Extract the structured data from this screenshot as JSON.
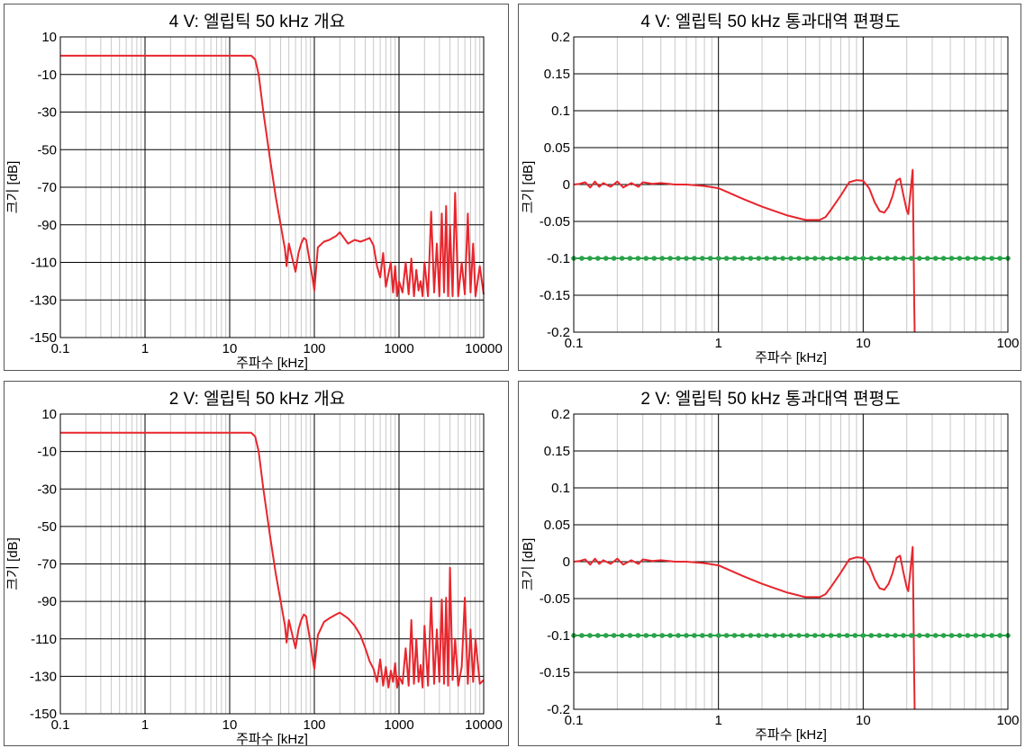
{
  "chart_data": [
    {
      "type": "line",
      "title": "4 V: 엘립틱 50 kHz 개요",
      "xlabel": "주파수 [kHz]",
      "ylabel": "크기 [dB]",
      "xscale": "log",
      "xlim": [
        0.1,
        10000
      ],
      "ylim": [
        -150,
        10
      ],
      "xticks": [
        0.1,
        1,
        10,
        100,
        1000,
        10000
      ],
      "xtick_labels": [
        "0.1",
        "1",
        "10",
        "100",
        "1000",
        "10000"
      ],
      "yticks": [
        10,
        -10,
        -30,
        -50,
        -70,
        -90,
        -110,
        -130,
        -150
      ],
      "ytick_labels": [
        "10",
        "-10",
        "-30",
        "-50",
        "-70",
        "-90",
        "-110",
        "-130",
        "-150"
      ],
      "grid": true,
      "series": [
        {
          "color": "#e8262d",
          "x": [
            0.1,
            1,
            10,
            18,
            20,
            22,
            25,
            30,
            35,
            40,
            45,
            47,
            50,
            55,
            60,
            65,
            70,
            75,
            80,
            90,
            95,
            100,
            110,
            130,
            150,
            180,
            200,
            250,
            300,
            350,
            400,
            450,
            500,
            550,
            600,
            650,
            700,
            800,
            850,
            900,
            950,
            1000,
            1100,
            1200,
            1300,
            1400,
            1500,
            1600,
            1700,
            1800,
            1900,
            2000,
            2200,
            2400,
            2600,
            2800,
            3000,
            3200,
            3400,
            3600,
            3800,
            4000,
            4300,
            4600,
            5000,
            5500,
            6000,
            6500,
            7000,
            7500,
            8000,
            9000,
            10000
          ],
          "y": [
            0,
            0,
            0,
            0,
            -2,
            -10,
            -30,
            -55,
            -75,
            -90,
            -103,
            -112,
            -100,
            -108,
            -115,
            -105,
            -100,
            -97,
            -98,
            -112,
            -118,
            -125,
            -102,
            -99,
            -98,
            -96,
            -94,
            -100,
            -98,
            -99,
            -98,
            -97,
            -101,
            -112,
            -118,
            -105,
            -123,
            -110,
            -126,
            -112,
            -128,
            -120,
            -126,
            -110,
            -127,
            -108,
            -128,
            -114,
            -125,
            -120,
            -128,
            -110,
            -128,
            -83,
            -126,
            -100,
            -128,
            -84,
            -126,
            -80,
            -128,
            -90,
            -128,
            -73,
            -128,
            -110,
            -127,
            -84,
            -126,
            -100,
            -128,
            -112,
            -127
          ]
        }
      ]
    },
    {
      "type": "line",
      "title": "4 V: 엘립틱 50 kHz 통과대역 편평도",
      "xlabel": "주파수 [kHz]",
      "ylabel": "크기 [dB]",
      "xscale": "log",
      "xlim": [
        0.1,
        100
      ],
      "ylim": [
        -0.2,
        0.2
      ],
      "xticks": [
        0.1,
        1,
        10,
        100
      ],
      "xtick_labels": [
        "0.1",
        "1",
        "10",
        "100"
      ],
      "yticks": [
        0.2,
        0.15,
        0.1,
        0.05,
        0,
        -0.05,
        -0.1,
        -0.15,
        -0.2
      ],
      "ytick_labels": [
        "0.2",
        "0.15",
        "0.1",
        "0.05",
        "0",
        "-0.05",
        "-0.1",
        "-0.15",
        "-0.2"
      ],
      "grid": true,
      "series": [
        {
          "color": "#e8262d",
          "x": [
            0.1,
            0.11,
            0.12,
            0.13,
            0.14,
            0.15,
            0.16,
            0.18,
            0.2,
            0.22,
            0.25,
            0.28,
            0.3,
            0.35,
            0.4,
            0.5,
            0.6,
            0.8,
            1,
            1.5,
            2,
            3,
            4,
            5,
            5.5,
            6,
            7,
            8,
            9,
            10,
            11,
            12,
            13,
            14,
            15,
            16,
            17,
            18,
            19,
            20,
            20.5,
            21,
            22,
            22.3,
            22.5,
            22.7
          ],
          "y": [
            0,
            0.001,
            0.003,
            -0.004,
            0.004,
            -0.003,
            0.002,
            -0.003,
            0.004,
            -0.004,
            0.002,
            -0.003,
            0.003,
            0.001,
            0.002,
            0,
            0,
            -0.002,
            -0.005,
            -0.02,
            -0.03,
            -0.042,
            -0.048,
            -0.048,
            -0.044,
            -0.034,
            -0.015,
            0.003,
            0.006,
            0.005,
            -0.005,
            -0.024,
            -0.036,
            -0.038,
            -0.03,
            -0.015,
            0.005,
            0.008,
            -0.015,
            -0.035,
            -0.04,
            -0.02,
            0.02,
            -0.08,
            -0.15,
            -0.2
          ]
        },
        {
          "color": "#2aa34a",
          "x": [
            0.1,
            100
          ],
          "y": [
            -0.1,
            -0.1
          ],
          "style": "dotted"
        }
      ]
    },
    {
      "type": "line",
      "title": "2 V: 엘립틱 50 kHz 개요",
      "xlabel": "주파수 [kHz]",
      "ylabel": "크기 [dB]",
      "xscale": "log",
      "xlim": [
        0.1,
        10000
      ],
      "ylim": [
        -150,
        10
      ],
      "xticks": [
        0.1,
        1,
        10,
        100,
        1000,
        10000
      ],
      "xtick_labels": [
        "0.1",
        "1",
        "10",
        "100",
        "1000",
        "10000"
      ],
      "yticks": [
        10,
        -10,
        -30,
        -50,
        -70,
        -90,
        -110,
        -130,
        -150
      ],
      "ytick_labels": [
        "10",
        "-10",
        "-30",
        "-50",
        "-70",
        "-90",
        "-110",
        "-130",
        "-150"
      ],
      "grid": true,
      "series": [
        {
          "color": "#e8262d",
          "x": [
            0.1,
            1,
            10,
            18,
            20,
            22,
            25,
            30,
            35,
            40,
            45,
            47,
            50,
            55,
            60,
            65,
            70,
            75,
            80,
            90,
            95,
            100,
            110,
            130,
            150,
            180,
            200,
            250,
            300,
            350,
            400,
            450,
            500,
            550,
            600,
            650,
            700,
            750,
            800,
            850,
            900,
            950,
            1000,
            1100,
            1200,
            1300,
            1400,
            1500,
            1600,
            1700,
            1800,
            1900,
            2000,
            2200,
            2400,
            2600,
            2800,
            3000,
            3200,
            3400,
            3600,
            3800,
            4000,
            4300,
            4600,
            5000,
            5500,
            6000,
            6500,
            7000,
            7500,
            8000,
            9000,
            10000
          ],
          "y": [
            0,
            0,
            0,
            0,
            -2,
            -10,
            -30,
            -55,
            -75,
            -90,
            -103,
            -112,
            -100,
            -108,
            -115,
            -105,
            -100,
            -97,
            -98,
            -112,
            -120,
            -126,
            -108,
            -101,
            -99,
            -97,
            -96,
            -99,
            -103,
            -108,
            -115,
            -122,
            -126,
            -133,
            -121,
            -135,
            -125,
            -136,
            -127,
            -133,
            -123,
            -136,
            -130,
            -134,
            -115,
            -135,
            -100,
            -134,
            -110,
            -133,
            -124,
            -136,
            -103,
            -135,
            -88,
            -134,
            -105,
            -133,
            -89,
            -134,
            -88,
            -135,
            -72,
            -132,
            -110,
            -135,
            -125,
            -88,
            -134,
            -105,
            -133,
            -110,
            -134,
            -132
          ]
        }
      ]
    },
    {
      "type": "line",
      "title": "2 V: 엘립틱 50 kHz 통과대역 편평도",
      "xlabel": "주파수 [kHz]",
      "ylabel": "크기 [dB]",
      "xscale": "log",
      "xlim": [
        0.1,
        100
      ],
      "ylim": [
        -0.2,
        0.2
      ],
      "xticks": [
        0.1,
        1,
        10,
        100
      ],
      "xtick_labels": [
        "0.1",
        "1",
        "10",
        "100"
      ],
      "yticks": [
        0.2,
        0.15,
        0.1,
        0.05,
        0,
        -0.05,
        -0.1,
        -0.15,
        -0.2
      ],
      "ytick_labels": [
        "0.2",
        "0.15",
        "0.1",
        "0.05",
        "0",
        "-0.05",
        "-0.1",
        "-0.15",
        "-0.2"
      ],
      "grid": true,
      "series": [
        {
          "color": "#e8262d",
          "x": [
            0.1,
            0.11,
            0.12,
            0.13,
            0.14,
            0.15,
            0.16,
            0.18,
            0.2,
            0.22,
            0.25,
            0.28,
            0.3,
            0.35,
            0.4,
            0.5,
            0.6,
            0.8,
            1,
            1.5,
            2,
            3,
            4,
            5,
            5.5,
            6,
            7,
            8,
            9,
            10,
            11,
            12,
            13,
            14,
            15,
            16,
            17,
            18,
            19,
            20,
            20.5,
            21,
            22,
            22.3,
            22.5,
            22.7
          ],
          "y": [
            0,
            0.001,
            0.003,
            -0.004,
            0.004,
            -0.003,
            0.002,
            -0.003,
            0.004,
            -0.004,
            0.002,
            -0.003,
            0.003,
            0.001,
            0.002,
            0,
            0,
            -0.002,
            -0.005,
            -0.02,
            -0.03,
            -0.042,
            -0.048,
            -0.048,
            -0.044,
            -0.034,
            -0.015,
            0.003,
            0.006,
            0.005,
            -0.005,
            -0.024,
            -0.036,
            -0.038,
            -0.03,
            -0.015,
            0.005,
            0.008,
            -0.015,
            -0.035,
            -0.04,
            -0.02,
            0.02,
            -0.08,
            -0.15,
            -0.2
          ]
        },
        {
          "color": "#2aa34a",
          "x": [
            0.1,
            100
          ],
          "y": [
            -0.1,
            -0.1
          ],
          "style": "dotted"
        }
      ]
    }
  ]
}
